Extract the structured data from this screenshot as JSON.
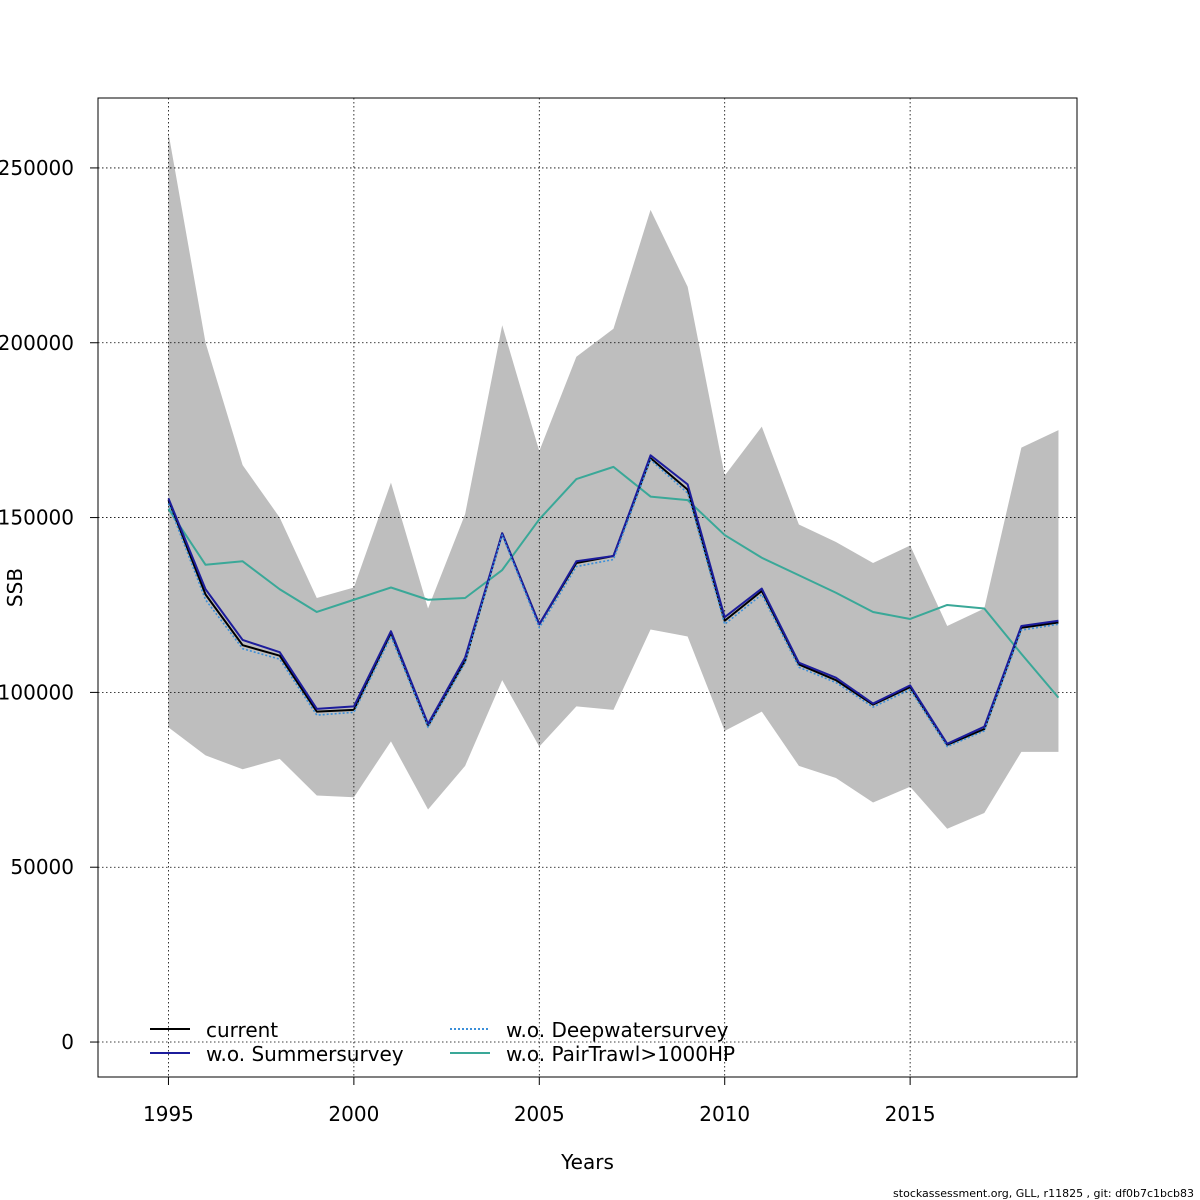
{
  "chart_data": {
    "type": "line",
    "xlabel": "Years",
    "ylabel": "SSB",
    "xlim": [
      1993.1,
      2019.5
    ],
    "ylim": [
      -10000,
      270000
    ],
    "x_ticks": [
      1995,
      2000,
      2005,
      2010,
      2015
    ],
    "y_ticks": [
      0,
      50000,
      100000,
      150000,
      200000,
      250000
    ],
    "grid": true,
    "legend_position": "bottom-left",
    "x": [
      1995,
      1996,
      1997,
      1998,
      1999,
      2000,
      2001,
      2002,
      2003,
      2004,
      2005,
      2006,
      2007,
      2008,
      2009,
      2010,
      2011,
      2012,
      2013,
      2014,
      2015,
      2016,
      2017,
      2018,
      2019
    ],
    "band": {
      "color": "#bebebe",
      "upper": [
        260000,
        200000,
        165000,
        150000,
        127000,
        130000,
        160000,
        124000,
        151000,
        205000,
        169000,
        196000,
        204000,
        238000,
        216000,
        162000,
        176000,
        148000,
        143000,
        137000,
        142000,
        119000,
        124000,
        170000,
        175000
      ],
      "lower": [
        90000,
        82000,
        78000,
        81000,
        70500,
        70000,
        86000,
        66500,
        79000,
        103500,
        84500,
        96000,
        95000,
        118000,
        116000,
        89000,
        94500,
        79000,
        75500,
        68500,
        73000,
        61000,
        65500,
        83000,
        83000
      ]
    },
    "series": [
      {
        "name": "current",
        "color": "#000000",
        "dash": "solid",
        "values": [
          155000,
          128000,
          113500,
          110500,
          94500,
          95000,
          117000,
          90500,
          109000,
          145500,
          119500,
          137000,
          139000,
          167000,
          158000,
          120500,
          129000,
          108000,
          103500,
          96500,
          101500,
          85000,
          89500,
          118500,
          120000
        ]
      },
      {
        "name": "w.o. Summersurvey",
        "color": "#1c1c9c",
        "dash": "solid",
        "values": [
          155500,
          129500,
          115000,
          111500,
          95300,
          96000,
          117500,
          91000,
          110000,
          145500,
          119500,
          137500,
          139000,
          167800,
          159500,
          121500,
          129700,
          108500,
          104200,
          96800,
          102000,
          85300,
          90200,
          119000,
          120500
        ]
      },
      {
        "name": "w.o. Deepwatersurvey",
        "color": "#3b8fd9",
        "dash": "dotted",
        "values": [
          154000,
          126500,
          112500,
          109500,
          93500,
          94300,
          116000,
          90000,
          108500,
          145000,
          118500,
          136000,
          138000,
          166500,
          157000,
          119500,
          128000,
          107200,
          102800,
          95800,
          100800,
          84500,
          89000,
          117800,
          119500
        ]
      },
      {
        "name": "w.o. PairTrawl>1000HP",
        "color": "#3aa898",
        "dash": "solid",
        "values": [
          152500,
          136500,
          137500,
          129500,
          123000,
          126500,
          130000,
          126500,
          127000,
          135000,
          149500,
          161000,
          164500,
          156000,
          155000,
          145000,
          138500,
          133500,
          128500,
          123000,
          121000,
          125000,
          124000,
          111000,
          98500
        ]
      }
    ]
  },
  "footer": {
    "text": "stockassessment.org, GLL, r11825 , git: df0b7c1bcb83"
  }
}
